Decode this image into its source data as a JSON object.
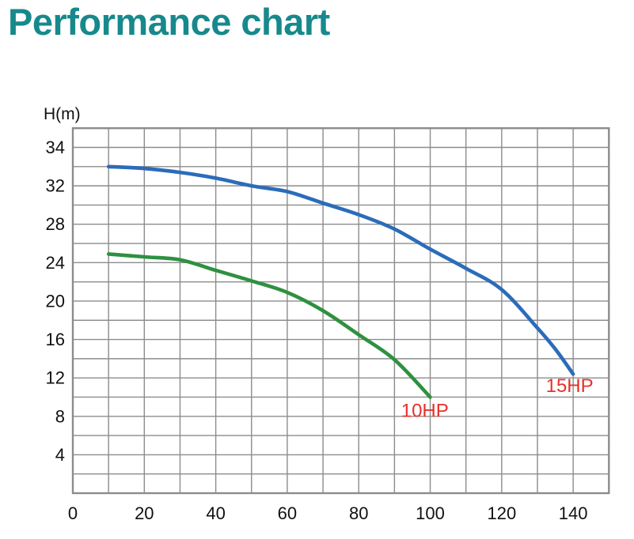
{
  "title": {
    "text": "Performance chart",
    "color": "#17898c"
  },
  "chart_data": {
    "type": "line",
    "title": "Performance chart",
    "xlabel": "",
    "ylabel": "H(m)",
    "xlim": [
      0,
      150
    ],
    "grid": true,
    "x_ticks": [
      0,
      20,
      40,
      60,
      80,
      100,
      120,
      140
    ],
    "y_ticks": [
      4,
      8,
      12,
      16,
      20,
      24,
      28,
      32,
      34
    ],
    "legend_position": "labels-next-to-curve-ends",
    "colors": {
      "grid": "#8c8c8c",
      "axis_text": "#111111",
      "series_label_text": "#e8312a"
    },
    "series": [
      {
        "name": "15HP",
        "label": "15HP",
        "color": "#2b6cba",
        "label_pos": [
          139,
          11.2
        ],
        "points": [
          [
            10,
            33
          ],
          [
            20,
            32.9
          ],
          [
            30,
            32.7
          ],
          [
            40,
            32.4
          ],
          [
            50,
            32.0
          ],
          [
            60,
            31.4
          ],
          [
            70,
            30.2
          ],
          [
            80,
            29.0
          ],
          [
            90,
            27.5
          ],
          [
            100,
            25.4
          ],
          [
            110,
            23.4
          ],
          [
            120,
            21.2
          ],
          [
            130,
            17.2
          ],
          [
            135,
            15.0
          ],
          [
            140,
            12.4
          ]
        ]
      },
      {
        "name": "10HP",
        "label": "10HP",
        "color": "#2e9140",
        "label_pos": [
          98.5,
          8.6
        ],
        "points": [
          [
            10,
            24.9
          ],
          [
            20,
            24.6
          ],
          [
            30,
            24.3
          ],
          [
            40,
            23.2
          ],
          [
            50,
            22.1
          ],
          [
            60,
            20.9
          ],
          [
            70,
            19.0
          ],
          [
            80,
            16.5
          ],
          [
            90,
            13.9
          ],
          [
            100,
            10.0
          ]
        ]
      }
    ]
  }
}
